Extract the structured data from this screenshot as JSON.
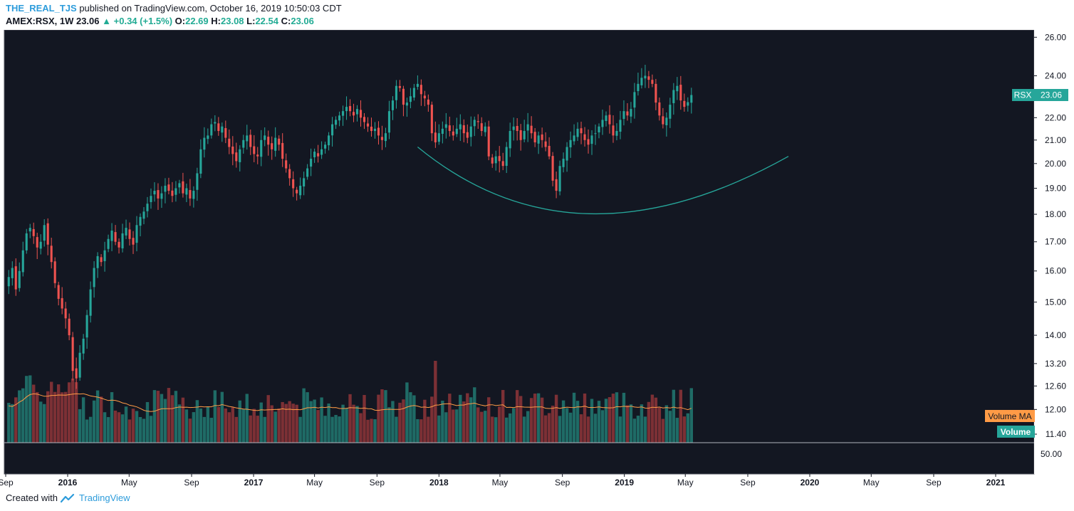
{
  "header": {
    "author": "THE_REAL_TJS",
    "published": "published on TradingView.com, October 16, 2019 10:50:03 CDT",
    "symbol": "AMEX:RSX, 1W",
    "last": "23.06",
    "change": "+0.34 (+1.5%)",
    "o_label": "O:",
    "o": "22.69",
    "h_label": "H:",
    "h": "23.08",
    "l_label": "L:",
    "l": "22.54",
    "c_label": "C:",
    "c": "23.06"
  },
  "footer": {
    "created_with": "Created with",
    "brand": "TradingView"
  },
  "colors": {
    "background": "#131722",
    "up": "#26a69a",
    "down": "#ef5350",
    "volume_up": "#1f6b66",
    "volume_down": "#7c3035",
    "volume_ma": "#ff9b46",
    "curve": "#26a69a"
  },
  "chart_data": {
    "type": "candlestick",
    "symbol": "RSX",
    "interval": "1W",
    "last_price_label": "RSX",
    "last_price": "23.06",
    "price_ticks": [
      "26.00",
      "24.00",
      "23.00",
      "22.00",
      "21.00",
      "20.00",
      "19.00",
      "18.00",
      "17.00",
      "16.00",
      "15.00",
      "14.00",
      "13.20",
      "12.60",
      "12.00",
      "11.40"
    ],
    "volume_tick": "50.00",
    "ylim": [
      11.2,
      26.4
    ],
    "y_scale": "log",
    "x_ticks": [
      "Sep",
      "2016",
      "May",
      "Sep",
      "2017",
      "May",
      "Sep",
      "2018",
      "May",
      "Sep",
      "2019",
      "May",
      "Sep",
      "2020",
      "May",
      "Sep",
      "2021"
    ],
    "x_tick_dates": [
      "2015-09-01",
      "2016-01-01",
      "2016-05-01",
      "2016-09-01",
      "2017-01-01",
      "2017-05-01",
      "2017-09-01",
      "2018-01-01",
      "2018-05-01",
      "2018-09-01",
      "2019-01-01",
      "2019-05-01",
      "2019-09-01",
      "2020-01-01",
      "2020-05-01",
      "2020-09-01",
      "2021-01-01"
    ],
    "first_bar_date": "2015-09-07",
    "series_close": [
      15.8,
      16.1,
      15.4,
      16.0,
      16.7,
      17.3,
      17.5,
      17.2,
      16.8,
      17.0,
      17.6,
      16.9,
      16.3,
      15.6,
      15.1,
      14.8,
      14.5,
      14.0,
      13.0,
      12.8,
      13.5,
      13.9,
      14.6,
      15.4,
      16.1,
      16.5,
      16.3,
      16.7,
      17.1,
      17.4,
      17.0,
      16.8,
      17.3,
      17.5,
      17.1,
      16.9,
      17.6,
      17.9,
      18.1,
      18.4,
      18.7,
      18.9,
      18.6,
      18.8,
      19.1,
      18.9,
      18.7,
      19.0,
      19.2,
      18.8,
      19.0,
      18.6,
      18.9,
      19.6,
      20.6,
      21.1,
      21.2,
      21.7,
      21.8,
      21.4,
      21.6,
      21.1,
      20.7,
      20.4,
      20.1,
      20.6,
      21.0,
      21.2,
      20.7,
      20.4,
      20.3,
      21.0,
      21.2,
      20.8,
      20.6,
      21.1,
      20.8,
      20.2,
      19.8,
      19.4,
      19.0,
      18.8,
      19.1,
      19.4,
      19.8,
      20.2,
      20.5,
      20.3,
      20.6,
      20.8,
      21.2,
      21.7,
      21.9,
      22.1,
      22.3,
      22.5,
      22.3,
      22.1,
      22.4,
      22.0,
      21.8,
      21.6,
      21.4,
      21.5,
      21.2,
      21.0,
      21.3,
      22.3,
      22.8,
      23.5,
      23.4,
      22.6,
      22.7,
      23.0,
      23.4,
      23.6,
      23.1,
      22.9,
      22.6,
      21.3,
      20.9,
      21.3,
      21.5,
      21.7,
      21.4,
      21.2,
      21.5,
      21.7,
      21.3,
      21.1,
      21.6,
      21.9,
      21.8,
      21.4,
      21.6,
      20.3,
      20.0,
      20.3,
      20.1,
      19.9,
      20.7,
      21.4,
      21.6,
      21.4,
      21.0,
      21.4,
      21.7,
      21.3,
      20.9,
      21.2,
      21.0,
      20.7,
      20.3,
      19.3,
      18.9,
      19.9,
      20.2,
      20.7,
      21.0,
      21.2,
      21.5,
      21.3,
      21.0,
      20.8,
      21.2,
      21.3,
      21.6,
      21.9,
      22.1,
      21.7,
      21.2,
      21.4,
      21.9,
      22.3,
      22.1,
      22.4,
      23.2,
      23.6,
      23.9,
      24.0,
      23.8,
      23.6,
      22.7,
      22.1,
      21.7,
      22.0,
      22.6,
      23.3,
      23.5,
      22.8,
      22.5,
      22.72,
      23.06
    ],
    "volume_ma_visible": true,
    "volume_legend": [
      "Volume MA",
      "Volume"
    ],
    "annotations": [
      "rounding bottom curve"
    ]
  }
}
